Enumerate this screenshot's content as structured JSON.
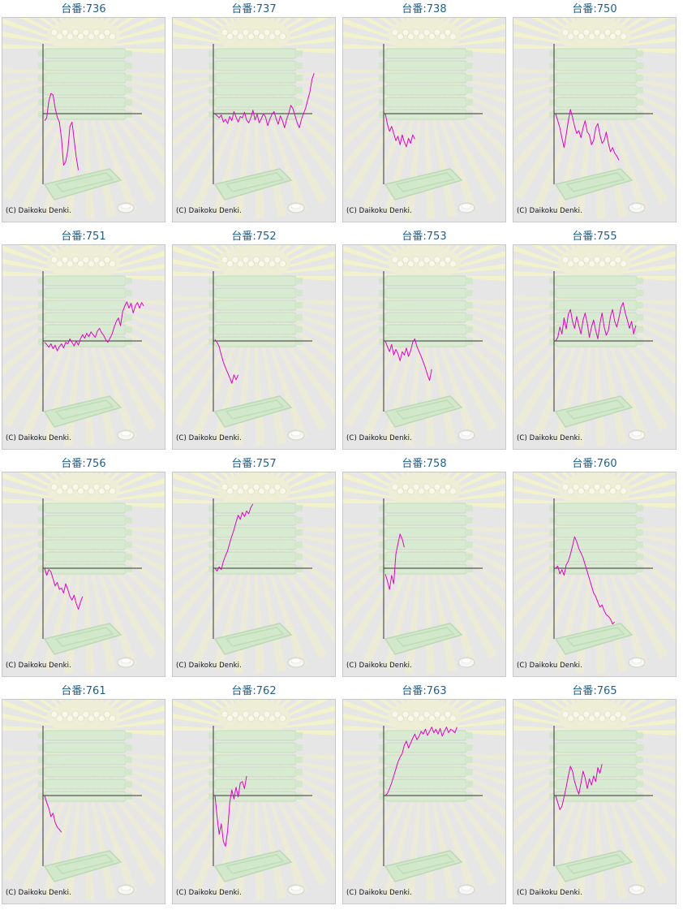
{
  "page": {
    "credit": "(C) Daikoku Denki."
  },
  "colors": {
    "line": "#e600c8",
    "axis": "#333333",
    "background": "#e6e6e6",
    "title": "#1f5f8b"
  },
  "chart_data": [
    {
      "type": "line",
      "title": "台番:736",
      "ylim": [
        -100,
        100
      ],
      "y": [
        -10,
        -6,
        18,
        29,
        27,
        8,
        -5,
        -12,
        -35,
        -73,
        -68,
        -52,
        -18,
        -12,
        -37,
        -62,
        -80
      ]
    },
    {
      "type": "line",
      "title": "台番:737",
      "ylim": [
        -100,
        100
      ],
      "y": [
        0,
        -3,
        -6,
        -2,
        -12,
        -8,
        -14,
        -4,
        -10,
        3,
        -5,
        -12,
        -4,
        -6,
        2,
        -9,
        -13,
        -6,
        5,
        -9,
        -1,
        -13,
        -7,
        0,
        -5,
        -17,
        -8,
        -1,
        3,
        -7,
        -15,
        -3,
        -10,
        -20,
        -8,
        1,
        12,
        7,
        -3,
        -13,
        -20,
        -8,
        0,
        8,
        20,
        31,
        49,
        58
      ]
    },
    {
      "type": "line",
      "title": "台番:738",
      "ylim": [
        -100,
        100
      ],
      "y": [
        0,
        -15,
        -25,
        -18,
        -28,
        -38,
        -32,
        -44,
        -30,
        -40,
        -47,
        -35,
        -42,
        -30,
        -36
      ]
    },
    {
      "type": "line",
      "title": "台番:750",
      "ylim": [
        -100,
        100
      ],
      "y": [
        0,
        -10,
        -20,
        -35,
        -48,
        -30,
        -10,
        6,
        -5,
        -18,
        -28,
        -24,
        -34,
        -20,
        -10,
        -26,
        -30,
        -44,
        -38,
        -20,
        -14,
        -30,
        -42,
        -38,
        -26,
        -42,
        -54,
        -48,
        -56,
        -60,
        -66
      ]
    },
    {
      "type": "line",
      "title": "台番:751",
      "ylim": [
        -100,
        100
      ],
      "y": [
        -2,
        -5,
        -9,
        -4,
        -11,
        -6,
        -14,
        -8,
        -4,
        -10,
        -2,
        -4,
        3,
        -2,
        -7,
        0,
        -6,
        3,
        9,
        4,
        11,
        6,
        13,
        9,
        5,
        14,
        18,
        12,
        8,
        2,
        -2,
        4,
        10,
        20,
        28,
        33,
        22,
        42,
        50,
        56,
        47,
        54,
        40,
        50,
        55,
        47,
        55,
        50
      ]
    },
    {
      "type": "line",
      "title": "台番:752",
      "ylim": [
        -100,
        100
      ],
      "y": [
        2,
        -2,
        -8,
        -20,
        -30,
        -38,
        -45,
        -52,
        -60,
        -48,
        -55,
        -48
      ]
    },
    {
      "type": "line",
      "title": "台番:753",
      "ylim": [
        -100,
        100
      ],
      "y": [
        0,
        -8,
        -15,
        -5,
        -20,
        -12,
        -18,
        -28,
        -15,
        -20,
        -10,
        -22,
        -14,
        -2,
        3,
        -8,
        -15,
        -22,
        -30,
        -38,
        -48,
        -56,
        -40
      ]
    },
    {
      "type": "line",
      "title": "台番:755",
      "ylim": [
        -100,
        100
      ],
      "y": [
        0,
        5,
        20,
        10,
        33,
        17,
        38,
        45,
        28,
        18,
        35,
        22,
        10,
        30,
        40,
        25,
        5,
        20,
        30,
        15,
        3,
        25,
        40,
        20,
        8,
        15,
        35,
        45,
        28,
        20,
        33,
        48,
        55,
        40,
        30,
        18,
        28,
        10,
        22
      ]
    },
    {
      "type": "line",
      "title": "台番:756",
      "ylim": [
        -100,
        100
      ],
      "y": [
        0,
        -10,
        -2,
        -5,
        -15,
        -25,
        -20,
        -30,
        -28,
        -35,
        -22,
        -30,
        -40,
        -45,
        -38,
        -50,
        -58,
        -48,
        -40
      ]
    },
    {
      "type": "line",
      "title": "台番:757",
      "ylim": [
        -100,
        100
      ],
      "y": [
        0,
        -4,
        2,
        -2,
        10,
        18,
        25,
        36,
        46,
        55,
        66,
        76,
        70,
        80,
        74,
        82,
        78,
        87,
        92
      ]
    },
    {
      "type": "line",
      "title": "台番:758",
      "ylim": [
        -100,
        100
      ],
      "y": [
        -8,
        -18,
        -30,
        -10,
        -22,
        20,
        35,
        49,
        42,
        30
      ]
    },
    {
      "type": "line",
      "title": "台番:760",
      "ylim": [
        -100,
        100
      ],
      "y": [
        0,
        3,
        -8,
        -2,
        -10,
        5,
        10,
        20,
        32,
        45,
        38,
        28,
        22,
        15,
        5,
        -5,
        -15,
        -25,
        -35,
        -40,
        -48,
        -55,
        -52,
        -60,
        -66,
        -68,
        -72,
        -79,
        -76
      ]
    },
    {
      "type": "line",
      "title": "台番:761",
      "ylim": [
        -100,
        100
      ],
      "y": [
        0,
        -10,
        -18,
        -30,
        -25,
        -38,
        -45,
        -48,
        -52
      ]
    },
    {
      "type": "line",
      "title": "台番:762",
      "ylim": [
        -100,
        100
      ],
      "y": [
        0,
        -30,
        -55,
        -40,
        -65,
        -72,
        -50,
        -10,
        8,
        -5,
        12,
        -2,
        18,
        20,
        10,
        28
      ]
    },
    {
      "type": "line",
      "title": "台番:763",
      "ylim": [
        -100,
        100
      ],
      "y": [
        0,
        3,
        10,
        18,
        28,
        38,
        48,
        55,
        60,
        72,
        78,
        68,
        75,
        82,
        88,
        80,
        85,
        92,
        88,
        95,
        86,
        92,
        98,
        90,
        95,
        88,
        96,
        85,
        92,
        98,
        90,
        95,
        93,
        90,
        98
      ]
    },
    {
      "type": "line",
      "title": "台番:765",
      "ylim": [
        -100,
        100
      ],
      "y": [
        0,
        -10,
        -20,
        -15,
        -2,
        12,
        28,
        42,
        35,
        20,
        10,
        2,
        18,
        35,
        25,
        10,
        24,
        15,
        28,
        20,
        40,
        32,
        45
      ]
    }
  ]
}
